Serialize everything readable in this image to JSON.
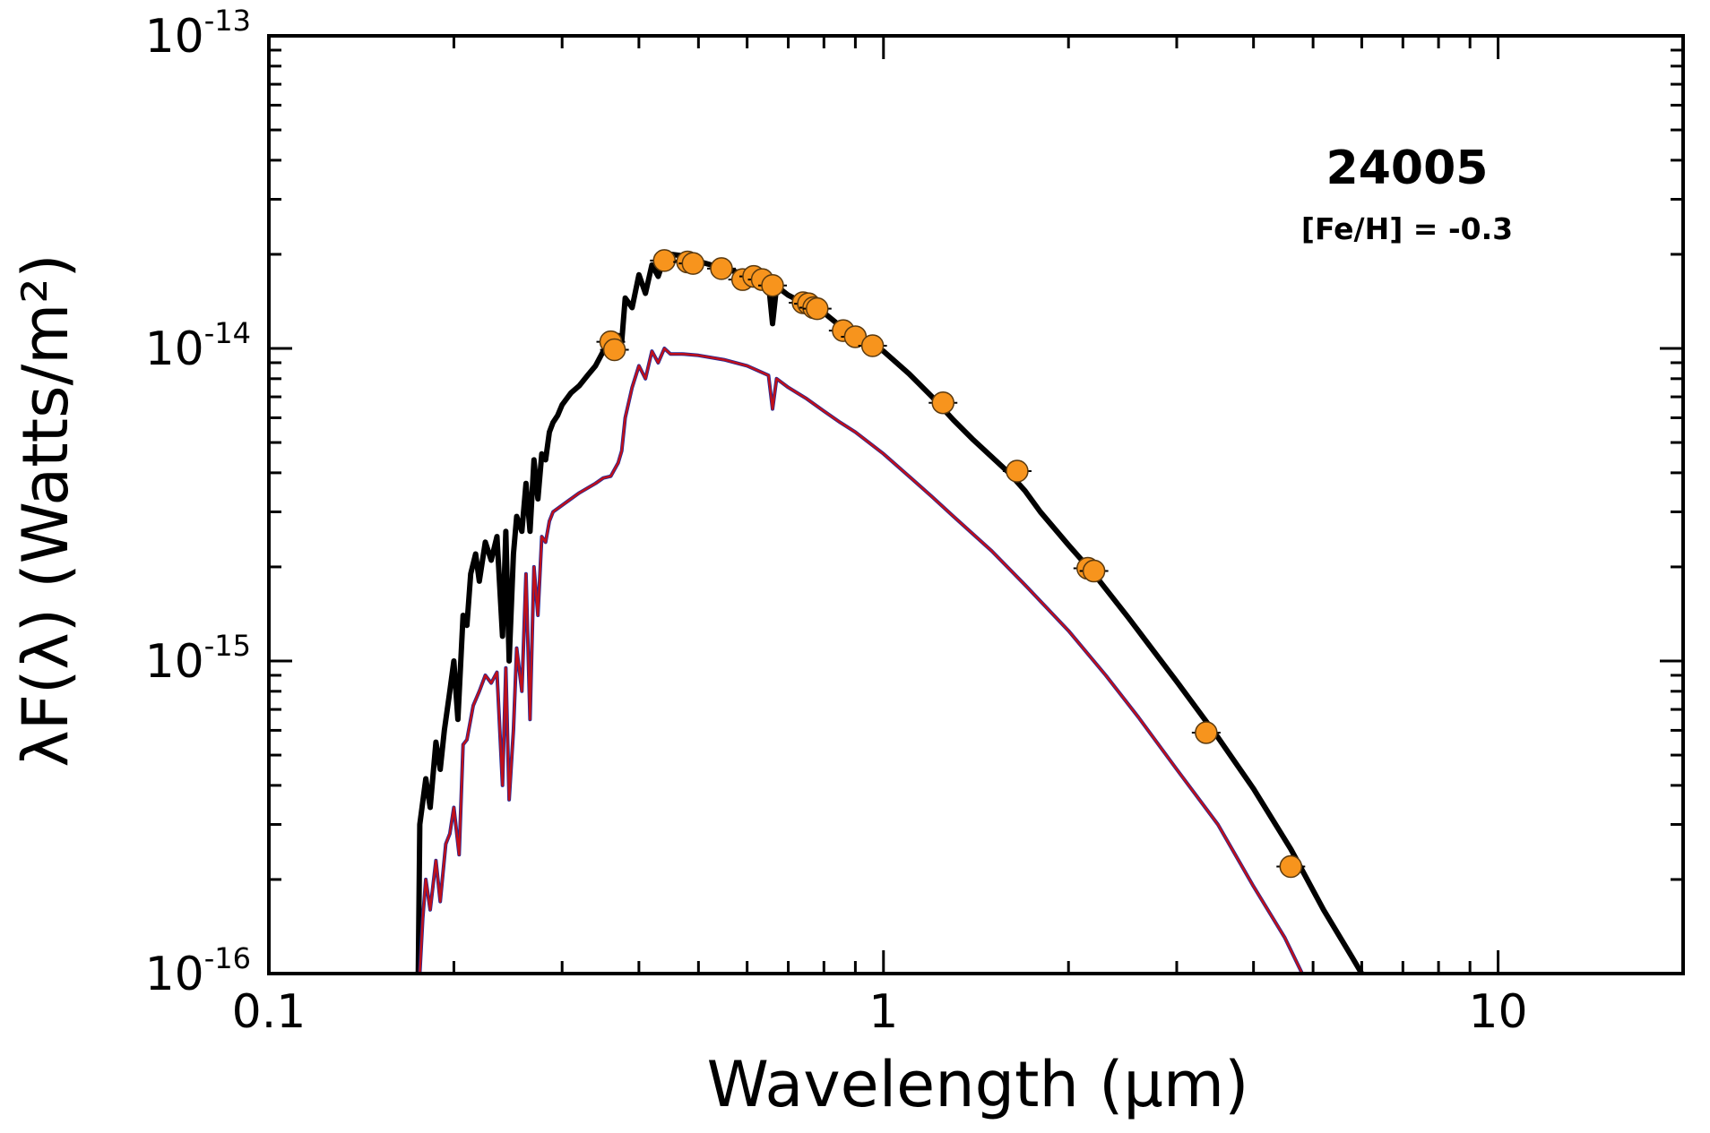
{
  "chart_data": {
    "type": "line",
    "x_scale": "log",
    "y_scale": "log",
    "xlabel": "Wavelength (μm)",
    "ylabel": "λF(λ) (Watts/m²)",
    "xlim": [
      0.1,
      20
    ],
    "ylim": [
      1e-16,
      1e-13
    ],
    "x_ticks": [
      {
        "value": 0.1,
        "label": "0.1"
      },
      {
        "value": 1,
        "label": "1"
      },
      {
        "value": 10,
        "label": "10"
      }
    ],
    "y_ticks": [
      {
        "value": 1e-13,
        "base": "10",
        "exp": "-13"
      },
      {
        "value": 1e-14,
        "base": "10",
        "exp": "-14"
      },
      {
        "value": 1e-15,
        "base": "10",
        "exp": "-15"
      },
      {
        "value": 1e-16,
        "base": "10",
        "exp": "-16"
      }
    ],
    "annotations": {
      "title": "24005",
      "subtitle": "[Fe/H] = -0.3"
    },
    "colors": {
      "black_model": "#000000",
      "red_model": "#c0101a",
      "blue_model": "#1c2a9c",
      "points_fill": "#f7941d",
      "points_edge": "#5a3a10"
    },
    "series": [
      {
        "name": "model-reddened",
        "color": "#000000",
        "x": [
          0.175,
          0.176,
          0.18,
          0.183,
          0.187,
          0.19,
          0.193,
          0.197,
          0.2,
          0.203,
          0.207,
          0.21,
          0.213,
          0.217,
          0.22,
          0.225,
          0.23,
          0.235,
          0.24,
          0.243,
          0.246,
          0.25,
          0.253,
          0.258,
          0.262,
          0.266,
          0.27,
          0.274,
          0.278,
          0.282,
          0.286,
          0.29,
          0.295,
          0.3,
          0.31,
          0.32,
          0.33,
          0.34,
          0.35,
          0.36,
          0.37,
          0.375,
          0.38,
          0.39,
          0.4,
          0.41,
          0.42,
          0.43,
          0.44,
          0.45,
          0.47,
          0.49,
          0.5,
          0.55,
          0.6,
          0.65,
          0.66,
          0.67,
          0.7,
          0.75,
          0.8,
          0.85,
          0.9,
          0.95,
          1.0,
          1.1,
          1.2,
          1.3,
          1.4,
          1.6,
          1.7,
          1.8,
          2.0,
          2.2,
          2.5,
          3.0,
          3.5,
          4.0,
          4.6,
          5.2,
          5.8,
          6.0
        ],
        "y": [
          1e-16,
          3e-16,
          4.2e-16,
          3.4e-16,
          5.5e-16,
          4.5e-16,
          6e-16,
          8e-16,
          1e-15,
          6.5e-16,
          1.4e-15,
          1.3e-15,
          1.9e-15,
          2.2e-15,
          1.8e-15,
          2.4e-15,
          2.1e-15,
          2.5e-15,
          1.2e-15,
          2.6e-15,
          1e-15,
          2.2e-15,
          2.9e-15,
          2.6e-15,
          3.7e-15,
          2.6e-15,
          4.4e-15,
          3.3e-15,
          4.6e-15,
          4.4e-15,
          5.4e-15,
          5.8e-15,
          6.1e-15,
          6.6e-15,
          7.2e-15,
          7.6e-15,
          8.2e-15,
          8.8e-15,
          9.8e-15,
          9.5e-15,
          1.1e-14,
          1.05e-14,
          1.45e-14,
          1.35e-14,
          1.72e-14,
          1.5e-14,
          1.85e-14,
          1.7e-14,
          1.95e-14,
          2e-14,
          1.98e-14,
          1.93e-14,
          1.9e-14,
          1.8e-14,
          1.72e-14,
          1.62e-14,
          1.2e-14,
          1.58e-14,
          1.48e-14,
          1.38e-14,
          1.3e-14,
          1.18e-14,
          1.1e-14,
          1.03e-14,
          9.8e-15,
          8.3e-15,
          7e-15,
          5.9e-15,
          5.1e-15,
          4e-15,
          3.5e-15,
          3e-15,
          2.35e-15,
          1.9e-15,
          1.38e-15,
          8.6e-16,
          5.7e-16,
          3.9e-16,
          2.5e-16,
          1.6e-16,
          1.12e-16,
          1e-16
        ]
      },
      {
        "name": "model-unreddened",
        "color": "#c0101a",
        "x": [
          0.176,
          0.178,
          0.18,
          0.183,
          0.187,
          0.19,
          0.194,
          0.197,
          0.2,
          0.204,
          0.207,
          0.21,
          0.215,
          0.22,
          0.225,
          0.23,
          0.235,
          0.24,
          0.243,
          0.246,
          0.25,
          0.253,
          0.258,
          0.262,
          0.266,
          0.27,
          0.274,
          0.278,
          0.282,
          0.286,
          0.29,
          0.3,
          0.32,
          0.34,
          0.35,
          0.36,
          0.37,
          0.375,
          0.38,
          0.39,
          0.4,
          0.41,
          0.42,
          0.43,
          0.44,
          0.45,
          0.47,
          0.5,
          0.55,
          0.6,
          0.65,
          0.66,
          0.67,
          0.7,
          0.75,
          0.8,
          0.85,
          0.9,
          1.0,
          1.1,
          1.2,
          1.3,
          1.5,
          1.7,
          2.0,
          2.3,
          2.6,
          3.0,
          3.5,
          4.0,
          4.5,
          4.8
        ],
        "y": [
          1e-16,
          1.5e-16,
          2e-16,
          1.6e-16,
          2.3e-16,
          1.7e-16,
          2.6e-16,
          2.8e-16,
          3.4e-16,
          2.4e-16,
          5.4e-16,
          5.6e-16,
          7.2e-16,
          8e-16,
          9e-16,
          8.5e-16,
          9.2e-16,
          4e-16,
          9.5e-16,
          3.6e-16,
          6e-16,
          1.1e-15,
          8e-16,
          1.9e-15,
          6.5e-16,
          2e-15,
          1.4e-15,
          2.5e-15,
          2.4e-15,
          2.8e-15,
          3e-15,
          3.15e-15,
          3.45e-15,
          3.7e-15,
          3.85e-15,
          3.9e-15,
          4.3e-15,
          4.7e-15,
          6e-15,
          7.5e-15,
          8.8e-15,
          8e-15,
          9.8e-15,
          9e-15,
          1e-14,
          9.6e-15,
          9.6e-15,
          9.5e-15,
          9.2e-15,
          8.8e-15,
          8.2e-15,
          6.4e-15,
          8e-15,
          7.5e-15,
          6.9e-15,
          6.3e-15,
          5.8e-15,
          5.4e-15,
          4.6e-15,
          3.9e-15,
          3.35e-15,
          2.9e-15,
          2.25e-15,
          1.75e-15,
          1.25e-15,
          9e-16,
          6.6e-16,
          4.5e-16,
          3e-16,
          1.9e-16,
          1.3e-16,
          1e-16
        ]
      },
      {
        "name": "photometry",
        "type": "scatter",
        "color": "#f7941d",
        "x": [
          0.36,
          0.365,
          0.44,
          0.48,
          0.49,
          0.545,
          0.59,
          0.615,
          0.635,
          0.66,
          0.74,
          0.755,
          0.77,
          0.78,
          0.86,
          0.9,
          0.96,
          1.25,
          1.65,
          2.15,
          2.2,
          3.35,
          4.6
        ],
        "y": [
          1.05e-14,
          9.9e-15,
          1.91e-14,
          1.89e-14,
          1.87e-14,
          1.8e-14,
          1.66e-14,
          1.7e-14,
          1.66e-14,
          1.59e-14,
          1.4e-14,
          1.39e-14,
          1.35e-14,
          1.34e-14,
          1.14e-14,
          1.09e-14,
          1.02e-14,
          6.7e-15,
          4.05e-15,
          1.98e-15,
          1.94e-15,
          5.9e-16,
          2.2e-16
        ]
      }
    ]
  }
}
